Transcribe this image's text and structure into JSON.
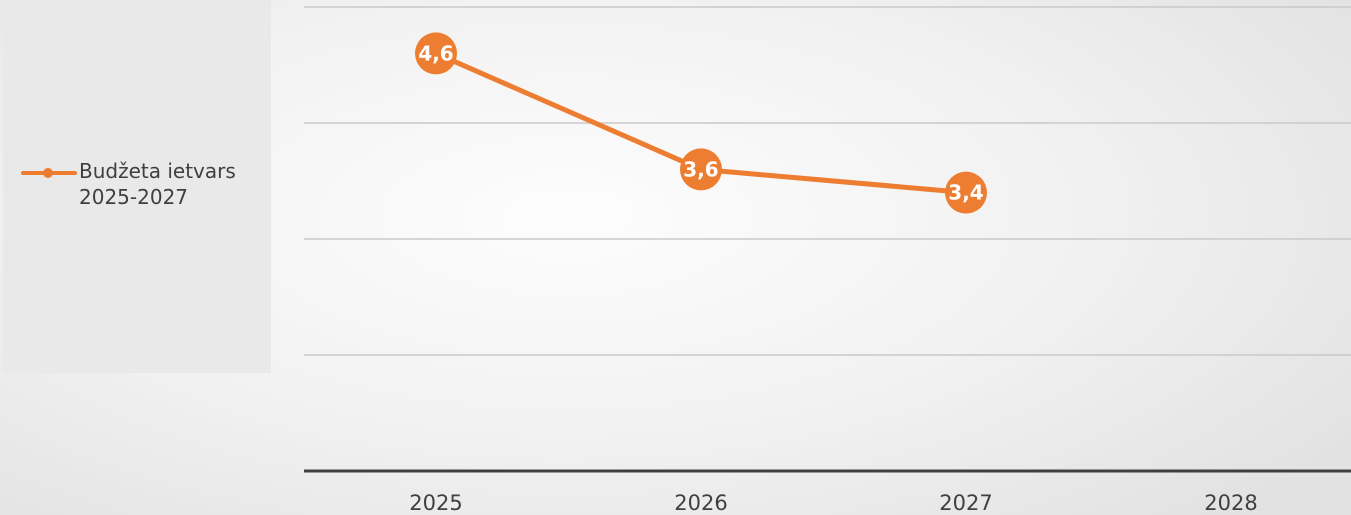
{
  "chart_data": {
    "type": "line",
    "categories": [
      "2025",
      "2026",
      "2027",
      "2028"
    ],
    "series": [
      {
        "name": "Budžeta ietvars 2025-2027",
        "values": [
          4.6,
          3.6,
          3.4,
          null
        ],
        "data_labels": [
          "4,6",
          "3,6",
          "3,4",
          ""
        ],
        "color": "#ed7d31"
      }
    ],
    "ylim": [
      1,
      5
    ],
    "grid": true,
    "legend_position": "left"
  },
  "legend": {
    "label": "Budžeta ietvars 2025-2027"
  }
}
